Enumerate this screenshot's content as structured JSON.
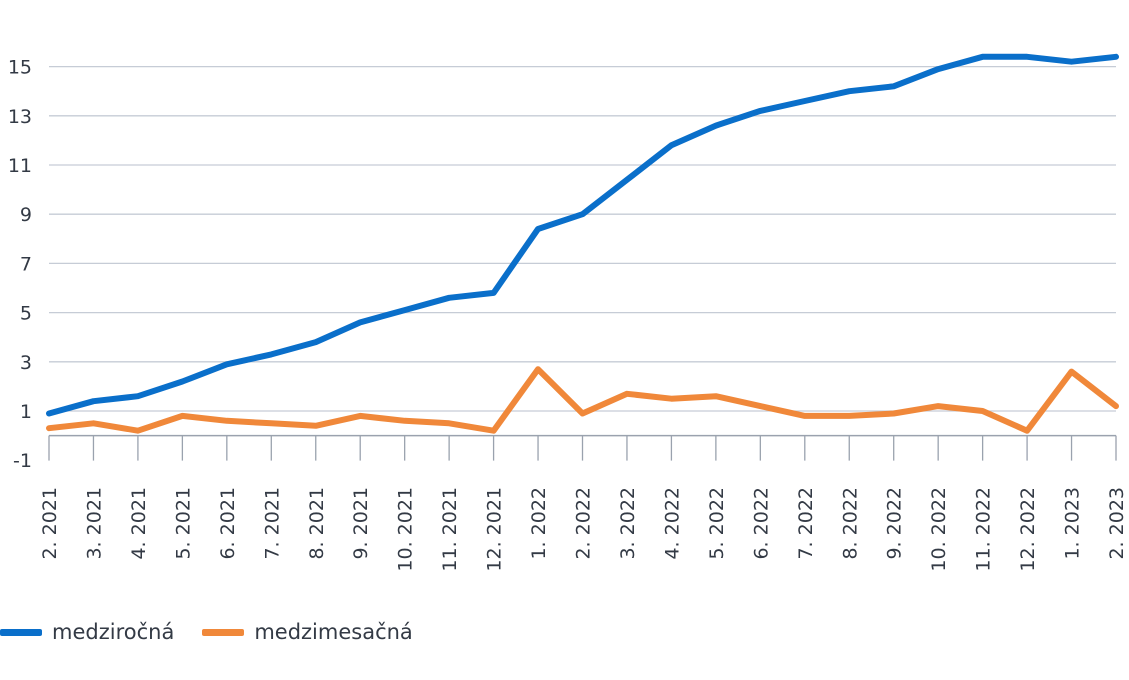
{
  "chart_data": {
    "type": "line",
    "title": "",
    "xlabel": "",
    "ylabel": "",
    "categories": [
      "2. 2021",
      "3. 2021",
      "4. 2021",
      "5. 2021",
      "6. 2021",
      "7. 2021",
      "8. 2021",
      "9. 2021",
      "10. 2021",
      "11. 2021",
      "12. 2021",
      "1. 2022",
      "2. 2022",
      "3. 2022",
      "4. 2022",
      "5. 2022",
      "6. 2022",
      "7. 2022",
      "8. 2022",
      "9. 2022",
      "10. 2022",
      "11. 2022",
      "12. 2022",
      "1. 2023",
      "2. 2023"
    ],
    "ylim": [
      -1,
      16.5
    ],
    "yticks": [
      -1,
      1,
      3,
      5,
      7,
      9,
      11,
      13,
      15
    ],
    "grid": true,
    "legend_position": "bottom-left",
    "series": [
      {
        "name": "medziročná",
        "color": "#0a6fca",
        "values": [
          0.9,
          1.4,
          1.6,
          2.2,
          2.9,
          3.3,
          3.8,
          4.6,
          5.1,
          5.6,
          5.8,
          8.4,
          9.0,
          10.4,
          11.8,
          12.6,
          13.2,
          13.6,
          14.0,
          14.2,
          14.9,
          15.4,
          15.4,
          15.2,
          15.4
        ]
      },
      {
        "name": "medzimesačná",
        "color": "#f0883a",
        "values": [
          0.3,
          0.5,
          0.2,
          0.8,
          0.6,
          0.5,
          0.4,
          0.8,
          0.6,
          0.5,
          0.2,
          2.7,
          0.9,
          1.7,
          1.5,
          1.6,
          1.2,
          0.8,
          0.8,
          0.9,
          1.2,
          1.0,
          0.2,
          2.6,
          1.2
        ]
      }
    ]
  }
}
